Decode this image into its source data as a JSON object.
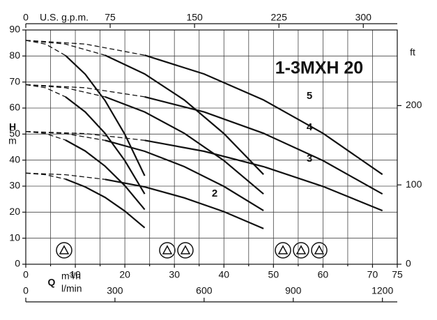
{
  "chart_data": {
    "type": "line",
    "title": "1-3MXH 20",
    "x_label": "Q",
    "x_unit": "m³/h",
    "y_label": "H",
    "y_unit": "m",
    "xlim": [
      0,
      75
    ],
    "xticks": [
      0,
      10,
      20,
      30,
      40,
      50,
      60,
      70,
      75
    ],
    "xminor": [
      5,
      15,
      25,
      35,
      45,
      55,
      65
    ],
    "ylim": [
      0,
      90
    ],
    "yticks": [
      0,
      10,
      20,
      30,
      40,
      50,
      60,
      70,
      80,
      90
    ],
    "grid": true,
    "color": "#111111",
    "top_axis": {
      "label": "U.S. g.p.m.",
      "xlim": [
        0,
        330.2
      ],
      "xticks": [
        0,
        75,
        150,
        225,
        300
      ]
    },
    "bottom_axis": {
      "label": "l/min",
      "xlim": [
        0,
        1250
      ],
      "xticks": [
        0,
        300,
        600,
        900,
        1200
      ]
    },
    "right_axis": {
      "label": "ft",
      "ylim": [
        0,
        295.3
      ],
      "yticks": [
        0,
        100,
        200
      ]
    },
    "curve_labels": [
      "5",
      "4",
      "3",
      "2"
    ],
    "series": [
      {
        "style": "dashed",
        "x": [
          0,
          12,
          24
        ],
        "values": [
          86,
          84.6,
          80.3
        ]
      },
      {
        "style": "solid",
        "x": [
          24,
          36,
          48,
          60,
          72
        ],
        "values": [
          80.3,
          73.1,
          63.1,
          50.3,
          34.5
        ]
      },
      {
        "style": "dashed",
        "x": [
          0,
          12,
          24
        ],
        "values": [
          69,
          67.8,
          64.3
        ]
      },
      {
        "style": "solid",
        "x": [
          24,
          36,
          48,
          60,
          72
        ],
        "values": [
          64.3,
          58.5,
          50.3,
          39.8,
          27
        ]
      },
      {
        "style": "dashed",
        "x": [
          0,
          12,
          24
        ],
        "values": [
          51,
          50.2,
          47.6
        ]
      },
      {
        "style": "solid",
        "x": [
          24,
          36,
          48,
          60,
          72
        ],
        "values": [
          47.6,
          43.4,
          37.5,
          29.9,
          20.6
        ]
      },
      {
        "style": "dashed",
        "x": [
          0,
          8,
          16
        ],
        "values": [
          86,
          84.6,
          80.3
        ]
      },
      {
        "style": "solid",
        "x": [
          16,
          24,
          32,
          40,
          48
        ],
        "values": [
          80.3,
          73.1,
          63.1,
          50.2,
          34.5
        ]
      },
      {
        "style": "dashed",
        "x": [
          0,
          8,
          16
        ],
        "values": [
          69,
          67.8,
          64.3
        ]
      },
      {
        "style": "solid",
        "x": [
          16,
          24,
          32,
          40,
          48
        ],
        "values": [
          64.3,
          58.5,
          50.3,
          39.8,
          27
        ]
      },
      {
        "style": "dashed",
        "x": [
          0,
          8,
          16
        ],
        "values": [
          51,
          50.2,
          47.6
        ]
      },
      {
        "style": "solid",
        "x": [
          16,
          24,
          32,
          40,
          48
        ],
        "values": [
          47.6,
          43.4,
          37.5,
          29.9,
          20.6
        ]
      },
      {
        "style": "dashed",
        "x": [
          0,
          8,
          16
        ],
        "values": [
          35,
          34.4,
          32.6
        ]
      },
      {
        "style": "solid",
        "x": [
          16,
          24,
          32,
          40,
          48
        ],
        "values": [
          32.6,
          29.7,
          25.5,
          20.2,
          13.7
        ]
      },
      {
        "style": "dashed",
        "x": [
          0,
          4,
          8
        ],
        "values": [
          86,
          84.6,
          80.2
        ]
      },
      {
        "style": "solid",
        "x": [
          8,
          12,
          16,
          20,
          24
        ],
        "values": [
          80.2,
          73,
          62.9,
          49.9,
          34
        ]
      },
      {
        "style": "dashed",
        "x": [
          0,
          4,
          8
        ],
        "values": [
          69,
          67.8,
          64.3
        ]
      },
      {
        "style": "solid",
        "x": [
          8,
          12,
          16,
          20,
          24
        ],
        "values": [
          64.3,
          58.5,
          50.3,
          39.8,
          27
        ]
      },
      {
        "style": "dashed",
        "x": [
          0,
          4,
          8
        ],
        "values": [
          51,
          50.2,
          47.7
        ]
      },
      {
        "style": "solid",
        "x": [
          8,
          12,
          16,
          20,
          24
        ],
        "values": [
          47.7,
          43.5,
          37.7,
          30.2,
          21
        ]
      },
      {
        "style": "dashed",
        "x": [
          0,
          4,
          8
        ],
        "values": [
          35,
          34.4,
          32.7
        ]
      },
      {
        "style": "solid",
        "x": [
          8,
          12,
          16,
          20,
          24
        ],
        "values": [
          32.7,
          29.7,
          25.7,
          20.4,
          14
        ]
      }
    ]
  }
}
